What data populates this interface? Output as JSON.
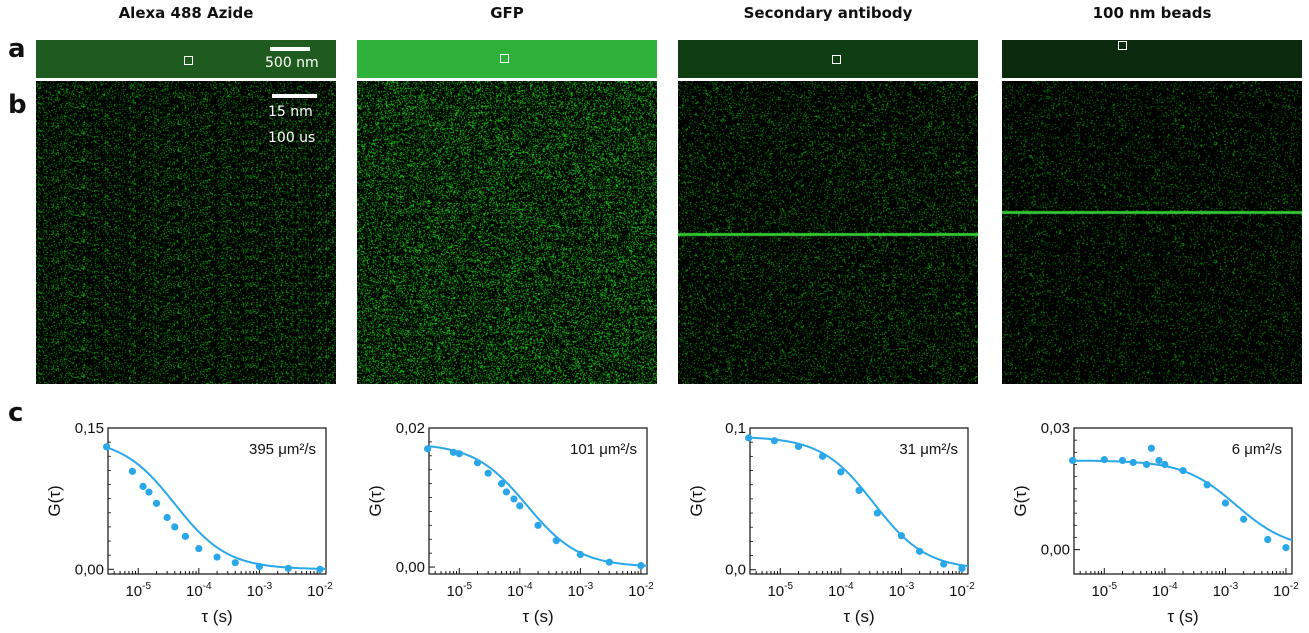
{
  "columns": [
    {
      "title": "Alexa 488 Azide",
      "strip_color": "#1f5a1f",
      "kymo_density": 0.55,
      "kymo_bright": 0.7,
      "line_frac": null
    },
    {
      "title": "GFP",
      "strip_color": "#2fb23a",
      "kymo_density": 0.85,
      "kymo_bright": 0.85,
      "line_frac": null
    },
    {
      "title": "Secondary antibody",
      "strip_color": "#0f3e14",
      "kymo_density": 0.45,
      "kymo_bright": 0.65,
      "line_frac": 0.5
    },
    {
      "title": "100 nm beads",
      "strip_color": "#0b2a0e",
      "kymo_density": 0.35,
      "kymo_bright": 0.6,
      "line_frac": 0.43
    }
  ],
  "panels": {
    "a": "a",
    "b": "b",
    "c": "c"
  },
  "scalebars": {
    "strip": "500 nm",
    "kymo_space": "15 nm",
    "kymo_time": "100 us"
  },
  "chart_data": [
    {
      "type": "scatter",
      "ylabel": "G(τ)",
      "xlabel": "τ (s)",
      "ytick_labels": [
        "0,00",
        "0,15"
      ],
      "ylim": [
        -0.005,
        0.15
      ],
      "xlim_log10": [
        -5.5,
        -1.9
      ],
      "annotation": "395 μm²/s",
      "fit": {
        "G0": 0.139,
        "tau_d": 4e-05
      },
      "points": [
        [
          3e-06,
          0.13
        ],
        [
          8e-06,
          0.104
        ],
        [
          1.2e-05,
          0.088
        ],
        [
          1.5e-05,
          0.082
        ],
        [
          2e-05,
          0.07
        ],
        [
          3e-05,
          0.055
        ],
        [
          4e-05,
          0.045
        ],
        [
          6e-05,
          0.035
        ],
        [
          0.0001,
          0.022
        ],
        [
          0.0002,
          0.013
        ],
        [
          0.0004,
          0.007
        ],
        [
          0.001,
          0.003
        ],
        [
          0.003,
          0.001
        ],
        [
          0.01,
          0.0
        ]
      ]
    },
    {
      "type": "scatter",
      "ylabel": "G(τ)",
      "xlabel": "τ (s)",
      "ytick_labels": [
        "0,00",
        "0,02"
      ],
      "ylim": [
        -0.001,
        0.02
      ],
      "xlim_log10": [
        -5.5,
        -1.9
      ],
      "annotation": "101 μm²/s",
      "fit": {
        "G0": 0.0178,
        "tau_d": 0.00013
      },
      "points": [
        [
          3e-06,
          0.017
        ],
        [
          8e-06,
          0.0165
        ],
        [
          1e-05,
          0.0163
        ],
        [
          2e-05,
          0.015
        ],
        [
          3e-05,
          0.0135
        ],
        [
          5e-05,
          0.012
        ],
        [
          6e-05,
          0.0108
        ],
        [
          8e-05,
          0.0098
        ],
        [
          0.0001,
          0.0088
        ],
        [
          0.0002,
          0.006
        ],
        [
          0.0004,
          0.0038
        ],
        [
          0.001,
          0.0018
        ],
        [
          0.003,
          0.0007
        ],
        [
          0.01,
          0.0002
        ]
      ]
    },
    {
      "type": "scatter",
      "ylabel": "G(τ)",
      "xlabel": "τ (s)",
      "ytick_labels": [
        "0,0",
        "0,1"
      ],
      "ylim": [
        -0.003,
        0.1
      ],
      "xlim_log10": [
        -5.5,
        -1.9
      ],
      "annotation": "31 μm²/s",
      "fit": {
        "G0": 0.094,
        "tau_d": 0.00035
      },
      "points": [
        [
          3e-06,
          0.093
        ],
        [
          8e-06,
          0.091
        ],
        [
          2e-05,
          0.087
        ],
        [
          5e-05,
          0.08
        ],
        [
          0.0001,
          0.069
        ],
        [
          0.0002,
          0.056
        ],
        [
          0.0004,
          0.04
        ],
        [
          0.001,
          0.024
        ],
        [
          0.002,
          0.013
        ],
        [
          0.005,
          0.004
        ],
        [
          0.01,
          0.001
        ]
      ]
    },
    {
      "type": "scatter",
      "ylabel": "G(τ)",
      "xlabel": "τ (s)",
      "ytick_labels": [
        "0,00",
        "0,03"
      ],
      "ylim": [
        -0.006,
        0.03
      ],
      "xlim_log10": [
        -5.5,
        -1.9
      ],
      "annotation": "6 μm²/s",
      "fit": {
        "G0": 0.022,
        "tau_d": 0.0015
      },
      "points": [
        [
          3e-06,
          0.022
        ],
        [
          1e-05,
          0.0222
        ],
        [
          2e-05,
          0.022
        ],
        [
          3e-05,
          0.0215
        ],
        [
          5e-05,
          0.021
        ],
        [
          6e-05,
          0.025
        ],
        [
          8e-05,
          0.022
        ],
        [
          0.0001,
          0.021
        ],
        [
          0.0002,
          0.0195
        ],
        [
          0.0005,
          0.016
        ],
        [
          0.001,
          0.0115
        ],
        [
          0.002,
          0.0075
        ],
        [
          0.005,
          0.0025
        ],
        [
          0.01,
          0.0005
        ]
      ]
    }
  ]
}
